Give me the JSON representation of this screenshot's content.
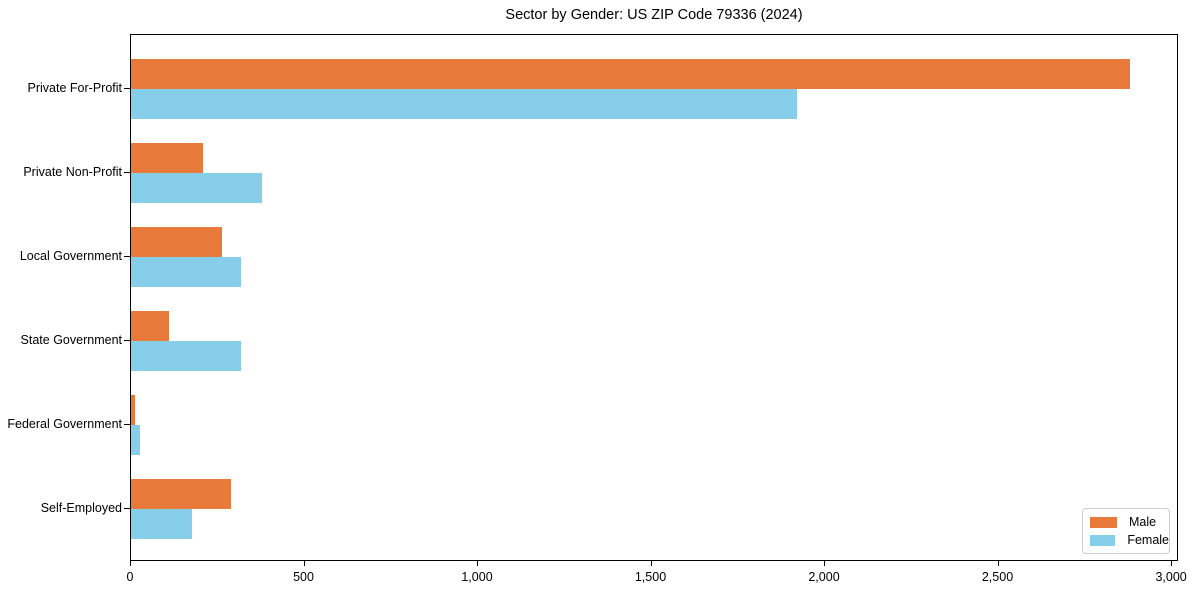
{
  "title": "Sector by Gender: US ZIP Code 79336 (2024)",
  "chart_data": {
    "type": "bar",
    "orientation": "horizontal",
    "title": "Sector by Gender: US ZIP Code 79336 (2024)",
    "categories": [
      "Private For-Profit",
      "Private Non-Profit",
      "Local Government",
      "State Government",
      "Federal Government",
      "Self-Employed"
    ],
    "series": [
      {
        "name": "Male",
        "color": "#E87A3C",
        "values": [
          2880,
          207,
          261,
          110,
          12,
          288
        ]
      },
      {
        "name": "Female",
        "color": "#87CEEB",
        "values": [
          1920,
          378,
          316,
          316,
          25,
          176
        ]
      }
    ],
    "xlim": [
      0,
      3020
    ],
    "xticks": [
      0,
      500,
      1000,
      1500,
      2000,
      2500,
      3000
    ],
    "xtick_labels": [
      "0",
      "500",
      "1,000",
      "1,500",
      "2,000",
      "2,500",
      "3,000"
    ],
    "legend": {
      "position": "lower right",
      "entries": [
        "Male",
        "Female"
      ]
    },
    "grid": false,
    "axis_color": "#000000",
    "legend_border_color": "#cccccc",
    "background_color": "#ffffff"
  }
}
